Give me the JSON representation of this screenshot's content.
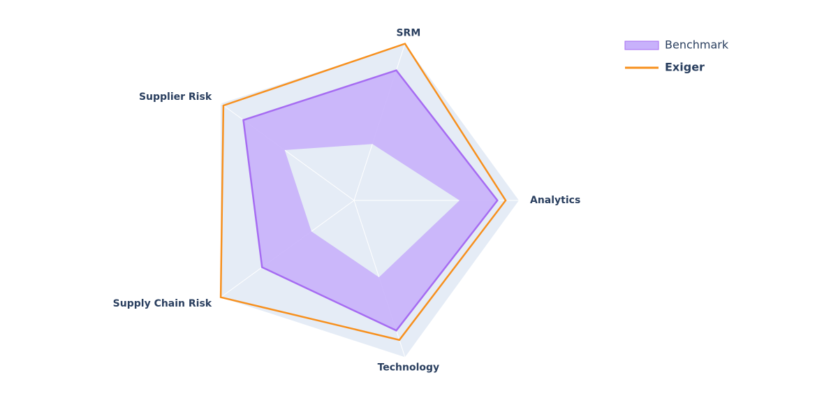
{
  "chart_data": {
    "type": "radar",
    "categories": [
      "Analytics",
      "SRM",
      "Supplier Risk",
      "Supply Chain Risk",
      "Technology"
    ],
    "rlim": [
      0,
      10
    ],
    "series": [
      {
        "name": "Benchmark",
        "color": "#a66cf2",
        "fill": "#c8b1fb",
        "values": [
          8.7,
          8.3,
          8.3,
          6.9,
          8.3
        ],
        "low_values": [
          6.4,
          3.6,
          5.2,
          3.2,
          4.9
        ]
      },
      {
        "name": "Exiger",
        "color": "#f7901e",
        "values": [
          9.2,
          10,
          9.8,
          10,
          8.9
        ]
      }
    ]
  }
}
